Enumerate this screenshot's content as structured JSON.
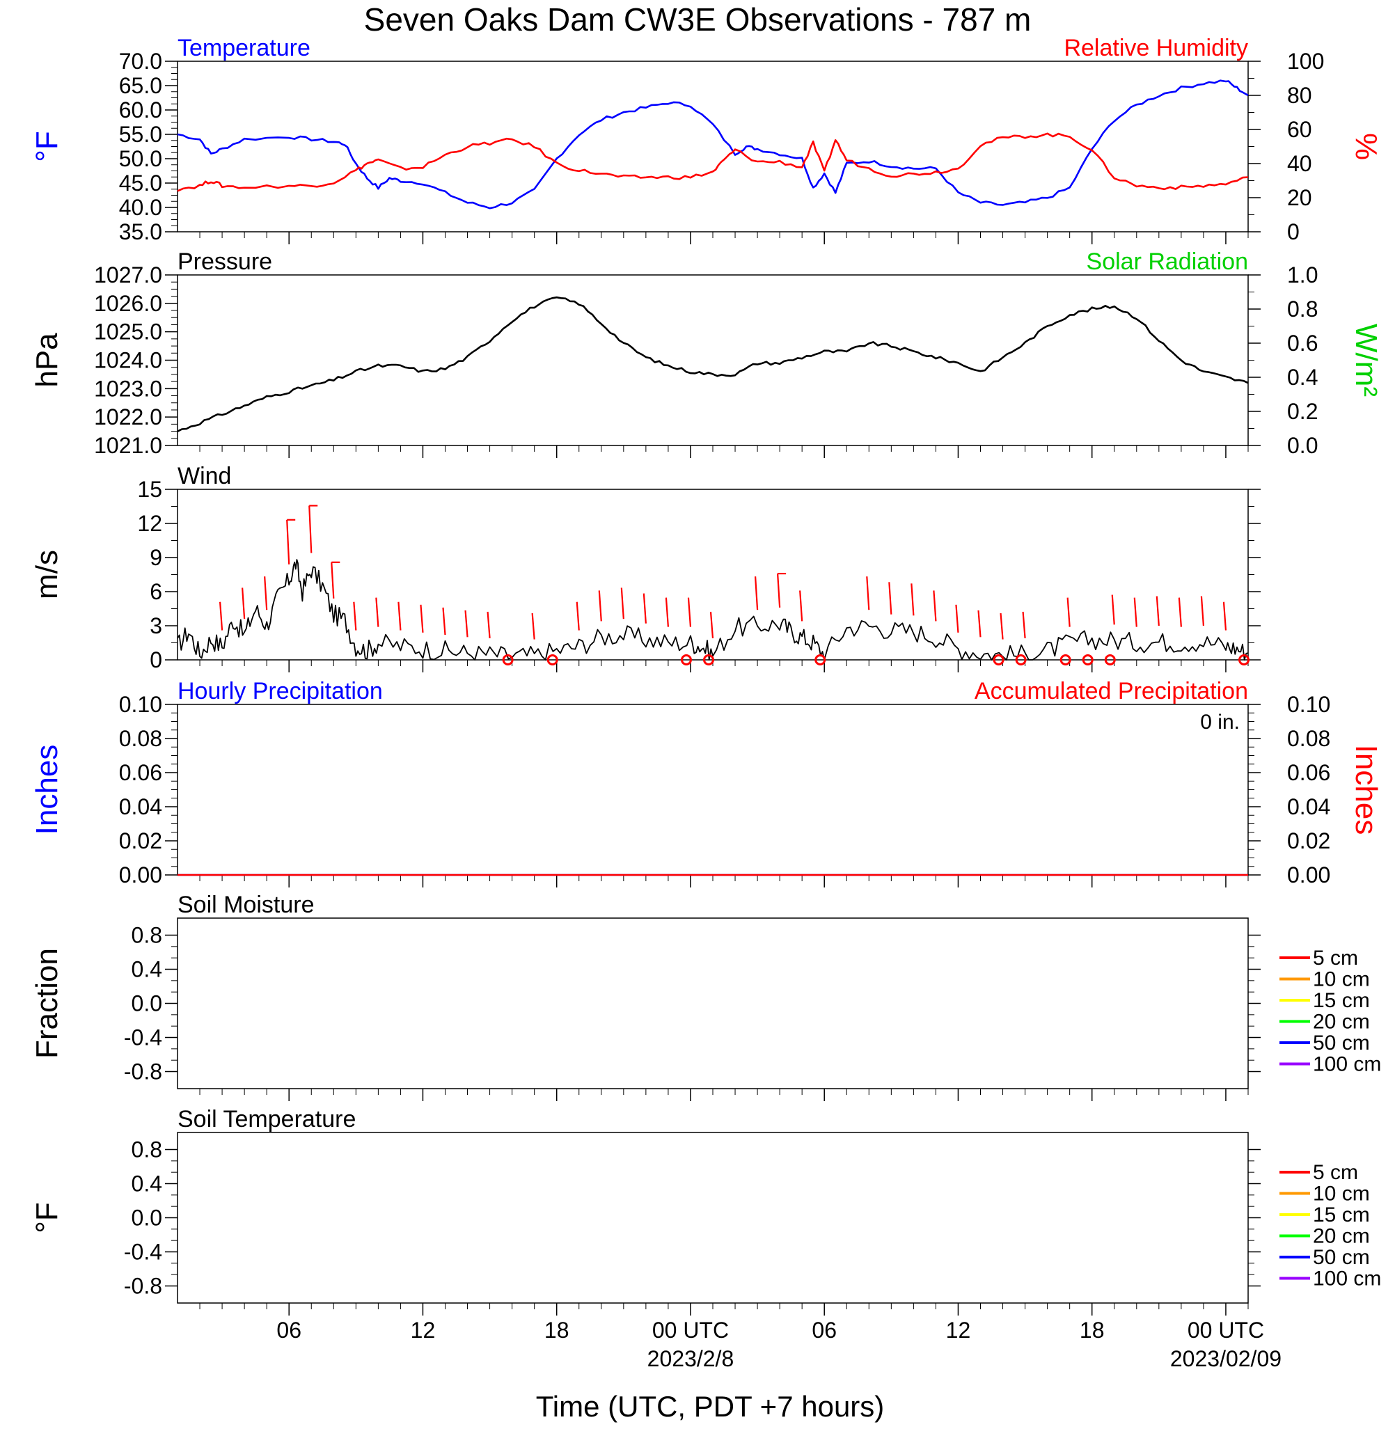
{
  "title": "Seven Oaks Dam CW3E Observations - 787 m",
  "xlabel": "Time (UTC, PDT +7 hours)",
  "colors": {
    "blue": "#0000ff",
    "red": "#ff0000",
    "green": "#00d000",
    "black": "#000000"
  },
  "x_axis": {
    "ticks": [
      {
        "hour": 6,
        "label": "06"
      },
      {
        "hour": 12,
        "label": "12"
      },
      {
        "hour": 18,
        "label": "18"
      },
      {
        "hour": 24,
        "label": "00 UTC",
        "date": "2023/2/8"
      },
      {
        "hour": 30,
        "label": "06"
      },
      {
        "hour": 36,
        "label": "12"
      },
      {
        "hour": 42,
        "label": "18"
      },
      {
        "hour": 48,
        "label": "00 UTC",
        "date": "2023/02/09"
      }
    ]
  },
  "chart_data": [
    {
      "type": "line",
      "panel": "temperature-rh",
      "title_left": "Temperature",
      "title_right": "Relative Humidity",
      "ylabel": "°F",
      "ylabel_right": "%",
      "ylim": [
        35,
        70
      ],
      "ylim_right": [
        0,
        100
      ],
      "yticks": [
        "35.0",
        "40.0",
        "45.0",
        "50.0",
        "55.0",
        "60.0",
        "65.0",
        "70.0"
      ],
      "yticks_right": [
        "0",
        "20",
        "40",
        "60",
        "80",
        "100"
      ],
      "series": [
        {
          "name": "Temperature",
          "axis": "left",
          "x": [
            1,
            2,
            2.5,
            3,
            4,
            6,
            7,
            8,
            8.5,
            9,
            9.5,
            10,
            10.5,
            11,
            12,
            13,
            14,
            15,
            16,
            17,
            18,
            19,
            20,
            21,
            22,
            23,
            24,
            25,
            26,
            26.5,
            27,
            28,
            29,
            29.5,
            30,
            30.5,
            31,
            32,
            33,
            34,
            35,
            36,
            37,
            38,
            39,
            40,
            41,
            42,
            43,
            44,
            45,
            46,
            47,
            48,
            48.5,
            49
          ],
          "y": [
            55,
            54,
            51,
            52,
            54,
            54.5,
            54,
            53.5,
            53,
            49,
            46,
            44,
            46,
            45.5,
            45,
            43,
            41,
            40,
            41,
            43.5,
            50,
            55,
            58,
            59.5,
            60.5,
            61.5,
            61,
            57,
            51,
            52.5,
            52,
            51,
            50,
            44,
            47,
            43,
            49,
            49.5,
            48.5,
            48,
            48,
            43,
            41,
            40.5,
            41,
            42,
            44,
            52,
            58,
            61,
            63,
            64.5,
            65.5,
            66,
            64.5,
            63
          ]
        },
        {
          "name": "Relative Humidity",
          "axis": "right",
          "x": [
            1,
            2,
            2.5,
            3,
            4,
            6,
            7,
            8,
            9,
            9.5,
            10,
            11,
            12,
            13,
            14,
            15,
            16,
            17,
            18,
            19,
            20,
            21,
            22,
            23,
            24,
            25,
            25.5,
            26,
            27,
            28,
            29,
            29.5,
            30,
            30.5,
            31,
            32,
            33,
            34,
            35,
            36,
            37,
            38,
            39,
            40,
            41,
            42,
            43,
            44,
            45,
            46,
            47,
            48,
            49
          ],
          "y": [
            25,
            27,
            30,
            27,
            26,
            27,
            27,
            29,
            36,
            40,
            42,
            37,
            38,
            45,
            50,
            52,
            54,
            50,
            40,
            36,
            34,
            32,
            32,
            32,
            32,
            35,
            42,
            48,
            41,
            41,
            38,
            52,
            35,
            54,
            42,
            37,
            33,
            34,
            35,
            37,
            51,
            55,
            56,
            57,
            56,
            48,
            32,
            27,
            26,
            26,
            27,
            28,
            32
          ]
        }
      ]
    },
    {
      "type": "line",
      "panel": "pressure",
      "title_left": "Pressure",
      "title_right": "Solar Radiation",
      "ylabel": "hPa",
      "ylabel_right": "W/m²",
      "ylim": [
        1021,
        1027
      ],
      "ylim_right": [
        0,
        1
      ],
      "yticks": [
        "1021.0",
        "1022.0",
        "1023.0",
        "1024.0",
        "1025.0",
        "1026.0",
        "1027.0"
      ],
      "yticks_right": [
        "0.0",
        "0.2",
        "0.4",
        "0.6",
        "0.8",
        "1.0"
      ],
      "series": [
        {
          "name": "Pressure",
          "axis": "left",
          "x": [
            1,
            2,
            3,
            4,
            5,
            6,
            7,
            8,
            9,
            10,
            11,
            12,
            13,
            14,
            15,
            16,
            17,
            18,
            19,
            20,
            21,
            22,
            23,
            24,
            25,
            26,
            27,
            28,
            29,
            30,
            31,
            32,
            33,
            34,
            35,
            36,
            37,
            38,
            39,
            40,
            41,
            42,
            43,
            44,
            45,
            46,
            47,
            48,
            49
          ],
          "y": [
            1021.5,
            1021.8,
            1022.1,
            1022.4,
            1022.7,
            1022.9,
            1023.1,
            1023.3,
            1023.6,
            1023.8,
            1023.8,
            1023.6,
            1023.7,
            1024.1,
            1024.7,
            1025.4,
            1025.9,
            1026.2,
            1026.0,
            1025.3,
            1024.6,
            1024.1,
            1023.8,
            1023.6,
            1023.5,
            1023.5,
            1023.9,
            1023.9,
            1024.1,
            1024.3,
            1024.3,
            1024.6,
            1024.5,
            1024.3,
            1024.1,
            1023.9,
            1023.6,
            1024.1,
            1024.6,
            1025.2,
            1025.6,
            1025.8,
            1025.9,
            1025.5,
            1024.7,
            1024.0,
            1023.6,
            1023.4,
            1023.2
          ]
        }
      ]
    },
    {
      "type": "line",
      "panel": "wind",
      "title_left": "Wind",
      "ylabel": "m/s",
      "ylim": [
        0,
        15
      ],
      "yticks": [
        "0",
        "3",
        "6",
        "9",
        "12",
        "15"
      ],
      "series": [
        {
          "name": "Wind",
          "axis": "left",
          "x": [
            1,
            1.5,
            2,
            2.5,
            3,
            3.5,
            4,
            4.5,
            5,
            5.5,
            6,
            6.3,
            6.6,
            7,
            7.5,
            8,
            8.5,
            9,
            9.5,
            10,
            11,
            12,
            13,
            14,
            15,
            16,
            17,
            18,
            19,
            20,
            21,
            22,
            23,
            24,
            24.5,
            25,
            26,
            27,
            28,
            28.5,
            29,
            29.5,
            30,
            31,
            32,
            33,
            34,
            35,
            36,
            37,
            38,
            39,
            40,
            41,
            42,
            43,
            44,
            45,
            46,
            47,
            48,
            48.5,
            49
          ],
          "y": [
            1.2,
            2.5,
            0.5,
            1.8,
            1.2,
            3.5,
            2.2,
            4.5,
            3.0,
            5.5,
            7.0,
            8.5,
            6.0,
            8.0,
            6.5,
            4.0,
            3.5,
            1.2,
            0.8,
            1.5,
            1.2,
            1.0,
            0.8,
            0.6,
            0.5,
            0.3,
            0.4,
            0.8,
            1.2,
            2.0,
            2.2,
            1.8,
            1.5,
            1.5,
            1.2,
            0.5,
            2.8,
            3.0,
            3.2,
            2.5,
            2.0,
            1.5,
            0.5,
            2.8,
            3.0,
            2.6,
            2.5,
            2.0,
            1.0,
            0.6,
            0.4,
            0.5,
            0.8,
            1.5,
            1.8,
            1.7,
            1.5,
            1.6,
            1.5,
            1.6,
            1.2,
            1.0,
            0.6
          ]
        }
      ],
      "barb_hours": [
        3,
        4,
        5,
        6,
        7,
        8,
        9,
        10,
        11,
        12,
        13,
        14,
        15,
        17,
        19,
        20,
        21,
        22,
        23,
        24,
        25,
        27,
        28,
        29,
        32,
        33,
        34,
        35,
        36,
        37,
        38,
        39,
        41,
        43,
        44,
        45,
        46,
        47,
        48
      ],
      "calm_hours": [
        16,
        18,
        24,
        25,
        30,
        38,
        39,
        41,
        42,
        43,
        49
      ]
    },
    {
      "type": "line",
      "panel": "precipitation",
      "title_left": "Hourly Precipitation",
      "title_right": "Accumulated Precipitation",
      "annotation": "0 in.",
      "ylabel": "Inches",
      "ylabel_right": "Inches",
      "ylim": [
        0,
        0.1
      ],
      "ylim_right": [
        0,
        0.1
      ],
      "yticks": [
        "0.00",
        "0.02",
        "0.04",
        "0.06",
        "0.08",
        "0.10"
      ],
      "yticks_right": [
        "0.00",
        "0.02",
        "0.04",
        "0.06",
        "0.08",
        "0.10"
      ],
      "series": [
        {
          "name": "Hourly Precipitation",
          "axis": "left",
          "x": [
            1,
            49
          ],
          "y": [
            0,
            0
          ]
        },
        {
          "name": "Accumulated Precipitation",
          "axis": "right",
          "x": [
            1,
            49
          ],
          "y": [
            0,
            0
          ]
        }
      ]
    },
    {
      "type": "line",
      "panel": "soil-moisture",
      "title_left": "Soil Moisture",
      "ylabel": "Fraction",
      "ylim": [
        -1,
        1
      ],
      "yticks": [
        "-0.8",
        "-0.4",
        "0.0",
        "0.4",
        "0.8"
      ],
      "legend": [
        "5 cm",
        "10 cm",
        "15 cm",
        "20 cm",
        "50 cm",
        "100 cm"
      ]
    },
    {
      "type": "line",
      "panel": "soil-temperature",
      "title_left": "Soil Temperature",
      "ylabel": "°F",
      "ylim": [
        -1,
        1
      ],
      "yticks": [
        "-0.8",
        "-0.4",
        "0.0",
        "0.4",
        "0.8"
      ],
      "legend": [
        "5 cm",
        "10 cm",
        "15 cm",
        "20 cm",
        "50 cm",
        "100 cm"
      ]
    }
  ],
  "legend_colors": [
    "#ff0000",
    "#ff9900",
    "#ffff00",
    "#00ff00",
    "#0000ff",
    "#9900ff"
  ]
}
